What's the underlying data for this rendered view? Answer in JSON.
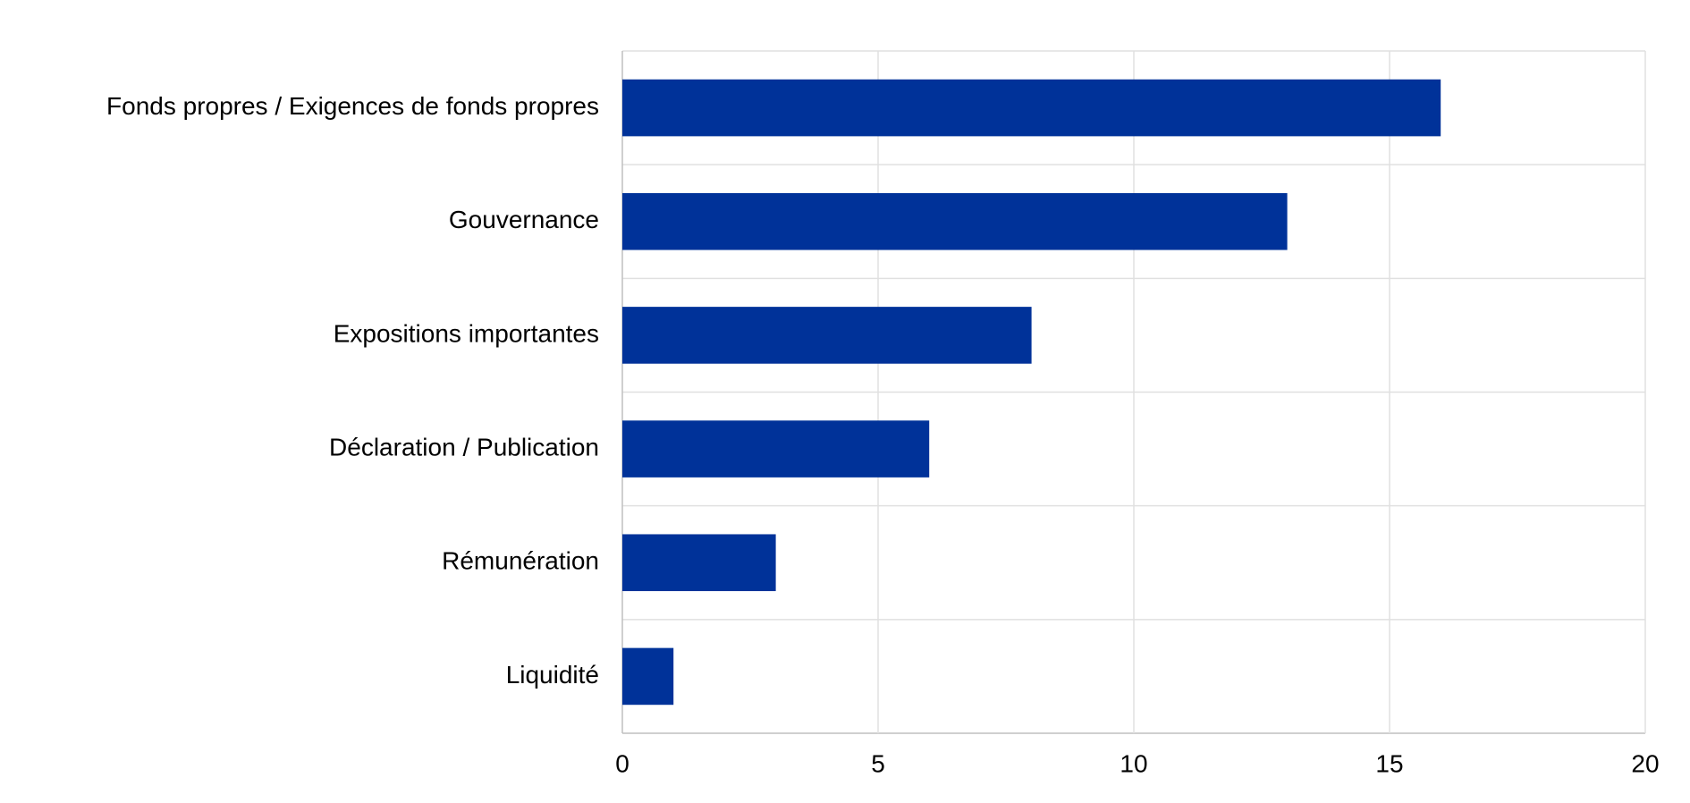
{
  "chart_data": {
    "type": "bar",
    "orientation": "horizontal",
    "categories": [
      "Fonds propres / Exigences de fonds propres",
      "Gouvernance",
      "Expositions importantes",
      "Déclaration / Publication",
      "Rémunération",
      "Liquidité"
    ],
    "values": [
      16,
      13,
      8,
      6,
      3,
      1
    ],
    "color": "#003299",
    "xlim": [
      0,
      20
    ],
    "xticks": [
      0,
      5,
      10,
      15,
      20
    ],
    "grid": true
  }
}
